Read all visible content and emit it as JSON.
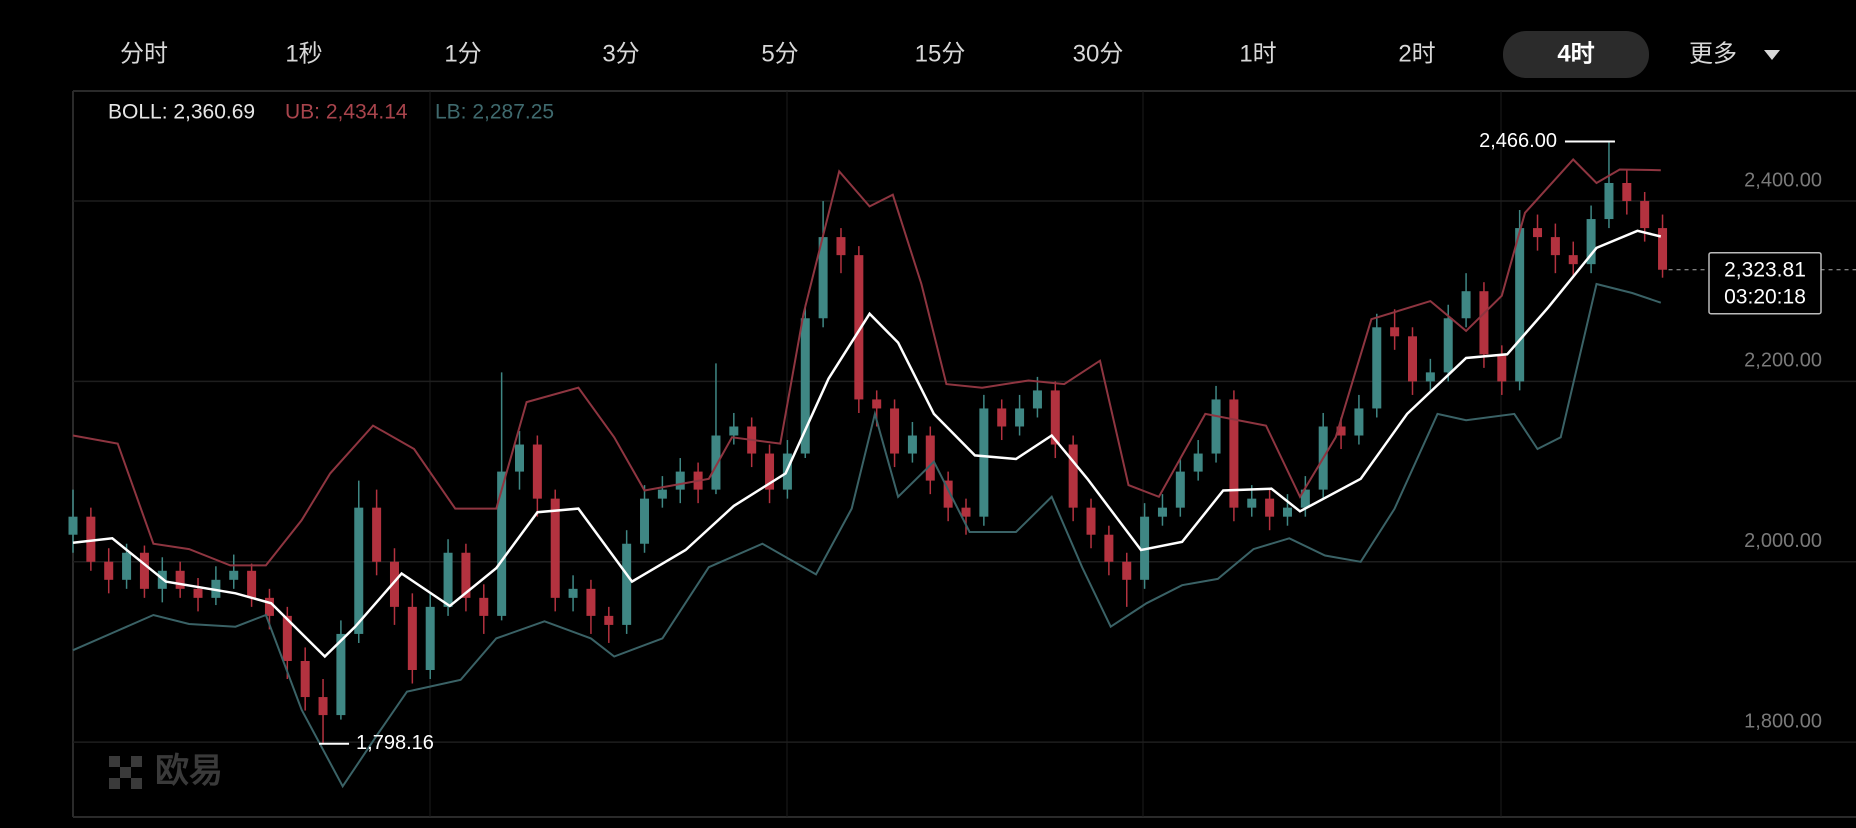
{
  "tabs": {
    "items": [
      "分时",
      "1秒",
      "1分",
      "3分",
      "5分",
      "15分",
      "30分",
      "1时",
      "2时",
      "4时"
    ],
    "active": 9,
    "more": "更多"
  },
  "chart_data": {
    "type": "candlestick",
    "legend": [
      {
        "text": "BOLL: 2,360.69",
        "color": "#e6e6e6"
      },
      {
        "text": "UB: 2,434.14",
        "color": "#a8444c"
      },
      {
        "text": "LB: 2,287.25",
        "color": "#3f6a6e"
      }
    ],
    "ylim": [
      1717,
      2522
    ],
    "yticks": [
      {
        "value": 2400,
        "label": "2,400.00"
      },
      {
        "value": 2200,
        "label": "2,200.00"
      },
      {
        "value": 2000,
        "label": "2,000.00"
      },
      {
        "value": 1800,
        "label": "1,800.00"
      }
    ],
    "grid": true,
    "candles": {
      "up_color": "#3f8784",
      "down_color": "#b3323f",
      "open": [
        2030,
        2050,
        2000,
        1980,
        2010,
        1970,
        1990,
        1970,
        1960,
        1980,
        1990,
        1960,
        1940,
        1890,
        1850,
        1830,
        1920,
        2060,
        2000,
        1950,
        1880,
        1950,
        2010,
        1960,
        1940,
        2100,
        2130,
        2070,
        1960,
        1970,
        1940,
        1930,
        2020,
        2070,
        2080,
        2100,
        2080,
        2140,
        2150,
        2120,
        2080,
        2120,
        2270,
        2360,
        2340,
        2180,
        2170,
        2120,
        2140,
        2090,
        2060,
        2050,
        2170,
        2150,
        2170,
        2190,
        2130,
        2060,
        2030,
        2000,
        1980,
        2050,
        2060,
        2100,
        2120,
        2180,
        2060,
        2070,
        2050,
        2060,
        2080,
        2150,
        2140,
        2170,
        2260,
        2250,
        2200,
        2210,
        2270,
        2300,
        2230,
        2200,
        2370,
        2360,
        2340,
        2330,
        2380,
        2420,
        2400,
        2370
      ],
      "high": [
        2080,
        2060,
        2015,
        2020,
        2018,
        2005,
        2000,
        1982,
        1995,
        2008,
        1998,
        1970,
        1950,
        1905,
        1870,
        1935,
        2090,
        2080,
        2015,
        1965,
        1965,
        2025,
        2020,
        1975,
        2210,
        2145,
        2140,
        2080,
        1985,
        1980,
        1950,
        2035,
        2085,
        2095,
        2115,
        2110,
        2220,
        2165,
        2160,
        2130,
        2135,
        2285,
        2400,
        2370,
        2350,
        2190,
        2180,
        2155,
        2150,
        2100,
        2070,
        2185,
        2180,
        2185,
        2205,
        2200,
        2140,
        2070,
        2040,
        2010,
        2065,
        2075,
        2115,
        2135,
        2195,
        2190,
        2085,
        2080,
        2075,
        2095,
        2165,
        2160,
        2185,
        2275,
        2280,
        2260,
        2225,
        2285,
        2320,
        2310,
        2240,
        2390,
        2385,
        2375,
        2355,
        2395,
        2466,
        2435,
        2410,
        2385
      ],
      "low": [
        2010,
        1990,
        1965,
        1970,
        1960,
        1955,
        1960,
        1945,
        1952,
        1970,
        1950,
        1925,
        1870,
        1835,
        1798.16,
        1825,
        1910,
        1985,
        1930,
        1865,
        1870,
        1940,
        1945,
        1920,
        1935,
        2080,
        2050,
        1945,
        1945,
        1920,
        1910,
        1920,
        2010,
        2060,
        2065,
        2065,
        2075,
        2130,
        2105,
        2065,
        2070,
        2115,
        2260,
        2320,
        2165,
        2150,
        2105,
        2110,
        2075,
        2045,
        2030,
        2040,
        2135,
        2140,
        2160,
        2115,
        2045,
        2015,
        1985,
        1950,
        1970,
        2040,
        2050,
        2090,
        2110,
        2045,
        2050,
        2035,
        2040,
        2050,
        2070,
        2125,
        2130,
        2160,
        2235,
        2185,
        2190,
        2200,
        2260,
        2215,
        2185,
        2190,
        2345,
        2320,
        2315,
        2320,
        2370,
        2385,
        2355,
        2315
      ],
      "close": [
        2050,
        2000,
        1980,
        2010,
        1970,
        1990,
        1970,
        1960,
        1980,
        1990,
        1960,
        1940,
        1890,
        1850,
        1830,
        1920,
        2060,
        2000,
        1950,
        1880,
        1950,
        2010,
        1960,
        1940,
        2100,
        2130,
        2070,
        1960,
        1970,
        1940,
        1930,
        2020,
        2070,
        2080,
        2100,
        2080,
        2140,
        2150,
        2120,
        2080,
        2120,
        2270,
        2360,
        2340,
        2180,
        2170,
        2120,
        2140,
        2090,
        2060,
        2050,
        2170,
        2150,
        2170,
        2190,
        2130,
        2060,
        2030,
        2000,
        1980,
        2050,
        2060,
        2100,
        2120,
        2180,
        2060,
        2070,
        2050,
        2060,
        2080,
        2150,
        2140,
        2170,
        2260,
        2250,
        2200,
        2210,
        2270,
        2300,
        2230,
        2200,
        2370,
        2360,
        2340,
        2330,
        2380,
        2420,
        2400,
        2370,
        2323.81
      ]
    },
    "bands": [
      {
        "color": "#8e3540",
        "x": [
          0,
          2.5,
          4.5,
          6.5,
          8.8,
          10.8,
          12.8,
          14.4,
          16.8,
          19.1,
          21.4,
          23.7,
          25.4,
          28.3,
          30.3,
          32.0,
          35.6,
          36.9,
          39.6,
          40.9,
          42.9,
          44.6,
          45.9,
          47.5,
          48.9,
          50.9,
          53.5,
          55.5,
          57.5,
          59.1,
          60.8,
          63.4,
          66.8,
          68.7,
          70.7,
          72.7,
          76.0,
          78.0,
          80.0,
          81.3,
          84.0,
          85.3,
          86.6,
          88.9
        ],
        "values": [
          2140,
          2131,
          2020,
          2014,
          1996,
          1996,
          2046,
          2098,
          2151,
          2125,
          2059,
          2059,
          2177,
          2193,
          2138,
          2079,
          2092,
          2138,
          2131,
          2275,
          2433,
          2394,
          2407,
          2308,
          2197,
          2193,
          2201,
          2197,
          2223,
          2085,
          2072,
          2164,
          2151,
          2072,
          2138,
          2269,
          2289,
          2256,
          2295,
          2387,
          2446,
          2420,
          2435,
          2434.14
        ]
      },
      {
        "color": "#ffffff",
        "x": [
          0,
          2.2,
          5.2,
          9.1,
          11.1,
          14.1,
          15.8,
          18.4,
          21.1,
          23.7,
          26.0,
          28.3,
          31.3,
          34.3,
          37.0,
          39.9,
          42.3,
          44.6,
          46.2,
          48.2,
          50.5,
          52.8,
          54.8,
          56.8,
          59.8,
          62.1,
          64.4,
          67.1,
          68.7,
          72.1,
          74.7,
          78.0,
          80.3,
          82.6,
          85.3,
          87.6,
          88.9
        ],
        "values": [
          2021,
          2026,
          1978,
          1965,
          1954,
          1895,
          1928,
          1987,
          1951,
          1993,
          2055,
          2059,
          1978,
          2013,
          2062,
          2098,
          2203,
          2275,
          2243,
          2164,
          2118,
          2114,
          2140,
          2092,
          2013,
          2022,
          2079,
          2081,
          2056,
          2092,
          2164,
          2226,
          2230,
          2282,
          2348,
          2367,
          2360.69
        ]
      },
      {
        "color": "#3a6266",
        "x": [
          0,
          2.2,
          4.5,
          6.5,
          9.1,
          10.8,
          12.8,
          15.1,
          17.1,
          18.7,
          21.7,
          23.7,
          26.4,
          29.0,
          30.3,
          33.0,
          35.6,
          38.6,
          41.6,
          43.6,
          44.9,
          46.2,
          48.2,
          50.2,
          52.8,
          54.8,
          56.5,
          58.1,
          60.1,
          62.1,
          64.1,
          66.1,
          68.1,
          70.1,
          72.1,
          74.0,
          76.4,
          78.0,
          80.7,
          82.0,
          83.3,
          85.3,
          87.3,
          88.9
        ],
        "values": [
          1902,
          1921,
          1941,
          1931,
          1928,
          1941,
          1836,
          1751,
          1810,
          1856,
          1869,
          1915,
          1934,
          1915,
          1895,
          1915,
          1994,
          2020,
          1986,
          2059,
          2164,
          2072,
          2111,
          2033,
          2033,
          2072,
          1994,
          1928,
          1954,
          1974,
          1981,
          2014,
          2026,
          2007,
          2000,
          2059,
          2164,
          2157,
          2164,
          2125,
          2138,
          2308,
          2298,
          2287.25
        ]
      }
    ],
    "high_label": "2,466.00",
    "low_label": "1,798.16",
    "last_price": {
      "label": "2,323.81",
      "countdown": "03:20:18"
    }
  },
  "watermark": "欧易"
}
